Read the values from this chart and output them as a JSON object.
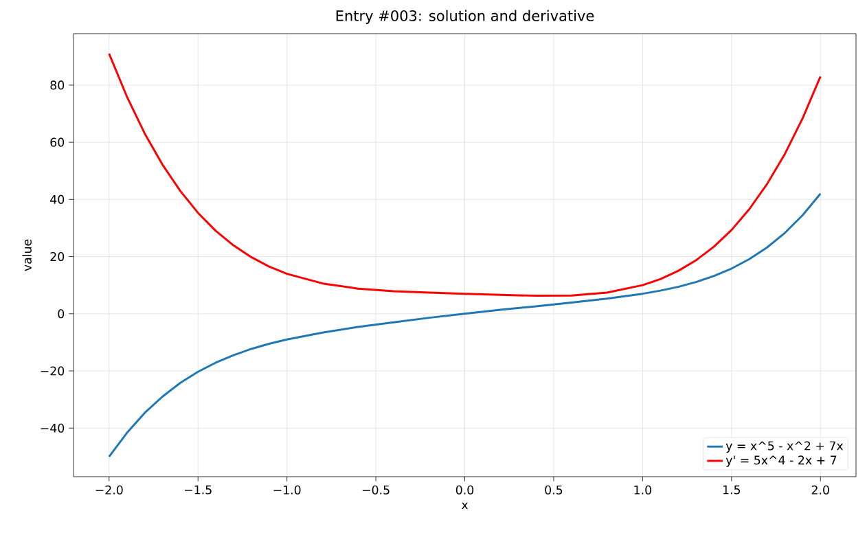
{
  "chart_data": {
    "type": "line",
    "title": "Entry #003: solution and derivative",
    "xlabel": "x",
    "ylabel": "value",
    "x": [
      -2.0,
      -1.9,
      -1.8,
      -1.7,
      -1.6,
      -1.5,
      -1.4,
      -1.3,
      -1.2,
      -1.1,
      -1.0,
      -0.8,
      -0.6,
      -0.4,
      -0.2,
      0.0,
      0.2,
      0.4,
      0.6,
      0.8,
      1.0,
      1.1,
      1.2,
      1.3,
      1.4,
      1.5,
      1.6,
      1.7,
      1.8,
      1.9,
      2.0
    ],
    "series": [
      {
        "name": "y = x^5 - x^2 + 7x",
        "color": "#1f77b4",
        "values": [
          -50.0,
          -41.7,
          -34.7,
          -29.0,
          -24.2,
          -20.3,
          -17.1,
          -14.5,
          -12.3,
          -10.5,
          -9.0,
          -6.6,
          -4.6,
          -3.0,
          -1.4,
          0.0,
          1.4,
          2.6,
          3.9,
          5.3,
          7.0,
          8.1,
          9.4,
          11.1,
          13.2,
          15.8,
          19.1,
          23.2,
          28.3,
          34.5,
          42.0
        ]
      },
      {
        "name": "y' = 5x^4 - 2x + 7",
        "color": "#ff0000",
        "values": [
          91.0,
          76.0,
          63.1,
          52.2,
          43.0,
          35.3,
          29.0,
          23.9,
          19.8,
          16.5,
          14.0,
          10.6,
          8.8,
          7.9,
          7.4,
          7.0,
          6.6,
          6.3,
          6.4,
          7.4,
          10.0,
          12.1,
          15.0,
          18.7,
          23.4,
          29.3,
          36.6,
          45.4,
          55.9,
          68.4,
          83.0
        ]
      }
    ],
    "xlim": [
      -2.2,
      2.2
    ],
    "ylim": [
      -57,
      98
    ],
    "xticks": [
      {
        "value": -2.0,
        "label": "−2.0"
      },
      {
        "value": -1.5,
        "label": "−1.5"
      },
      {
        "value": -1.0,
        "label": "−1.0"
      },
      {
        "value": -0.5,
        "label": "−0.5"
      },
      {
        "value": 0.0,
        "label": "0.0"
      },
      {
        "value": 0.5,
        "label": "0.5"
      },
      {
        "value": 1.0,
        "label": "1.0"
      },
      {
        "value": 1.5,
        "label": "1.5"
      },
      {
        "value": 2.0,
        "label": "2.0"
      }
    ],
    "yticks": [
      {
        "value": -40,
        "label": "−40"
      },
      {
        "value": -20,
        "label": "−20"
      },
      0,
      20,
      40,
      60,
      80
    ],
    "grid": true,
    "legend": "bottom right",
    "marker": "none",
    "line_style": "solid"
  }
}
